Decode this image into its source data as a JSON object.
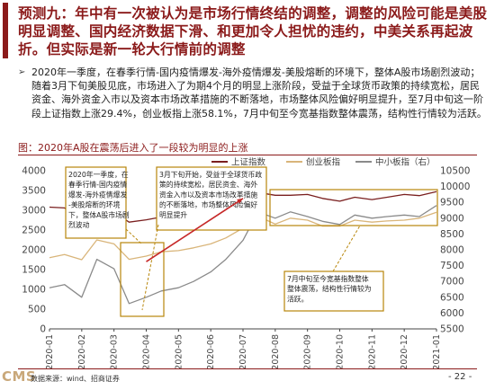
{
  "slide": {
    "title": "预测九：年中有一次被认为是市场行情终结的调整，调整的风险可能是美股明显调整、国内经济数据下滑、和更加令人担忧的违约，中美关系再起波折。但实际是新一轮大行情前的调整",
    "bullet_mark": "➢",
    "bullet_text": "2020年一季度，在春季行情-国内疫情爆发-海外疫情爆发-美股熔断的环境下，整体A股市场剧烈波动；随着3月下旬美股见底，市场进入了为期4个月的明显上涨阶段，受益于全球货币政策的持续宽松，居民资金、海外资金入市以及资本市场改革措施的不断落地，市场整体风险偏好明显提升，至7月中旬这一阶段上证指数上涨29.4%，创业板指上涨58.1%，7月中旬至今宽基指数整体震荡，结构性行情较为活跃。",
    "figure_title": "图：2020年A股在震荡后进入了一段较为明显的上涨",
    "footer_source": "数据来源：wind、招商证券",
    "footer_logo": "CMS",
    "page_number": "- 22 -"
  },
  "chart_data": {
    "type": "line",
    "title": "",
    "legend": [
      "上证指数",
      "创业板指",
      "中小板指（右）"
    ],
    "legend_position": "top",
    "x_ticks": [
      "2020-01",
      "2020-02",
      "2020-03",
      "2020-04",
      "2020-05",
      "2020-06",
      "2020-07",
      "2020-08",
      "2020-09",
      "2020-10",
      "2020-11",
      "2020-12",
      "2021-01"
    ],
    "y_left": {
      "min": 0,
      "max": 4000,
      "ticks": [
        0,
        500,
        1000,
        1500,
        2000,
        2500,
        3000,
        3500,
        4000
      ]
    },
    "y_right": {
      "min": 5500,
      "max": 10500,
      "ticks": [
        5500,
        6000,
        6500,
        7000,
        7500,
        8000,
        8500,
        9000,
        9500,
        10000,
        10500
      ]
    },
    "gridlines": false,
    "colors": {
      "shanghai": "#7a1f1f",
      "chinext": "#d9b57a",
      "sme": "#8a8a8a",
      "annotation": "#b8860b",
      "arrow": "#c62828"
    },
    "series": [
      {
        "name": "上证指数",
        "axis": "left",
        "x": [
          "2020-01",
          "2020-01-15",
          "2020-02",
          "2020-02-15",
          "2020-03",
          "2020-03-15",
          "2020-04",
          "2020-04-15",
          "2020-05",
          "2020-05-15",
          "2020-06",
          "2020-06-15",
          "2020-07",
          "2020-07-15",
          "2020-08",
          "2020-08-15",
          "2020-09",
          "2020-09-15",
          "2020-10",
          "2020-10-15",
          "2020-11",
          "2020-11-15",
          "2020-12",
          "2020-12-15",
          "2021-01"
        ],
        "values": [
          3080,
          3060,
          2750,
          2980,
          2960,
          2700,
          2760,
          2830,
          2850,
          2870,
          2900,
          2950,
          3100,
          3450,
          3380,
          3380,
          3400,
          3300,
          3230,
          3330,
          3270,
          3330,
          3400,
          3370,
          3470
        ]
      },
      {
        "name": "创业板指",
        "axis": "left",
        "x": [
          "2020-01",
          "2020-01-15",
          "2020-02",
          "2020-02-15",
          "2020-03",
          "2020-03-15",
          "2020-04",
          "2020-04-15",
          "2020-05",
          "2020-05-15",
          "2020-06",
          "2020-06-15",
          "2020-07",
          "2020-07-15",
          "2020-08",
          "2020-08-15",
          "2020-09",
          "2020-09-15",
          "2020-10",
          "2020-10-15",
          "2020-11",
          "2020-11-15",
          "2020-12",
          "2020-12-15",
          "2021-01"
        ],
        "values": [
          1800,
          1880,
          1750,
          2250,
          2150,
          1760,
          1840,
          1950,
          1980,
          2050,
          2150,
          2300,
          2550,
          2850,
          2650,
          2800,
          2750,
          2600,
          2600,
          2750,
          2700,
          2730,
          2750,
          2800,
          2950
        ]
      },
      {
        "name": "中小板指（右）",
        "axis": "right",
        "x": [
          "2020-01",
          "2020-01-15",
          "2020-02",
          "2020-02-15",
          "2020-03",
          "2020-03-15",
          "2020-04",
          "2020-04-15",
          "2020-05",
          "2020-05-15",
          "2020-06",
          "2020-06-15",
          "2020-07",
          "2020-07-15",
          "2020-08",
          "2020-08-15",
          "2020-09",
          "2020-09-15",
          "2020-10",
          "2020-10-15",
          "2020-11",
          "2020-11-15",
          "2020-12",
          "2020-12-15",
          "2021-01"
        ],
        "values": [
          6800,
          6900,
          6500,
          7700,
          7400,
          6300,
          6500,
          6700,
          6800,
          7000,
          7300,
          7700,
          8300,
          9200,
          9000,
          9200,
          9050,
          8900,
          8800,
          9100,
          9000,
          9050,
          9100,
          9050,
          9400
        ]
      }
    ],
    "annotations": [
      {
        "text": "2020年一季度，在春季行情-国内疫情爆发-海外疫情爆发-美股熔断的环境下，整体A股市场剧烈波动"
      },
      {
        "text": "3月下旬开始，受益于全球货币政策的持续宽松，居民资金、海外资金入市以及资本市场改革措施的不断落地，市场整体风险偏好明显提升"
      },
      {
        "text": "7月中旬至今宽基指数整体震荡，结构性行情较为活跃。"
      }
    ]
  }
}
